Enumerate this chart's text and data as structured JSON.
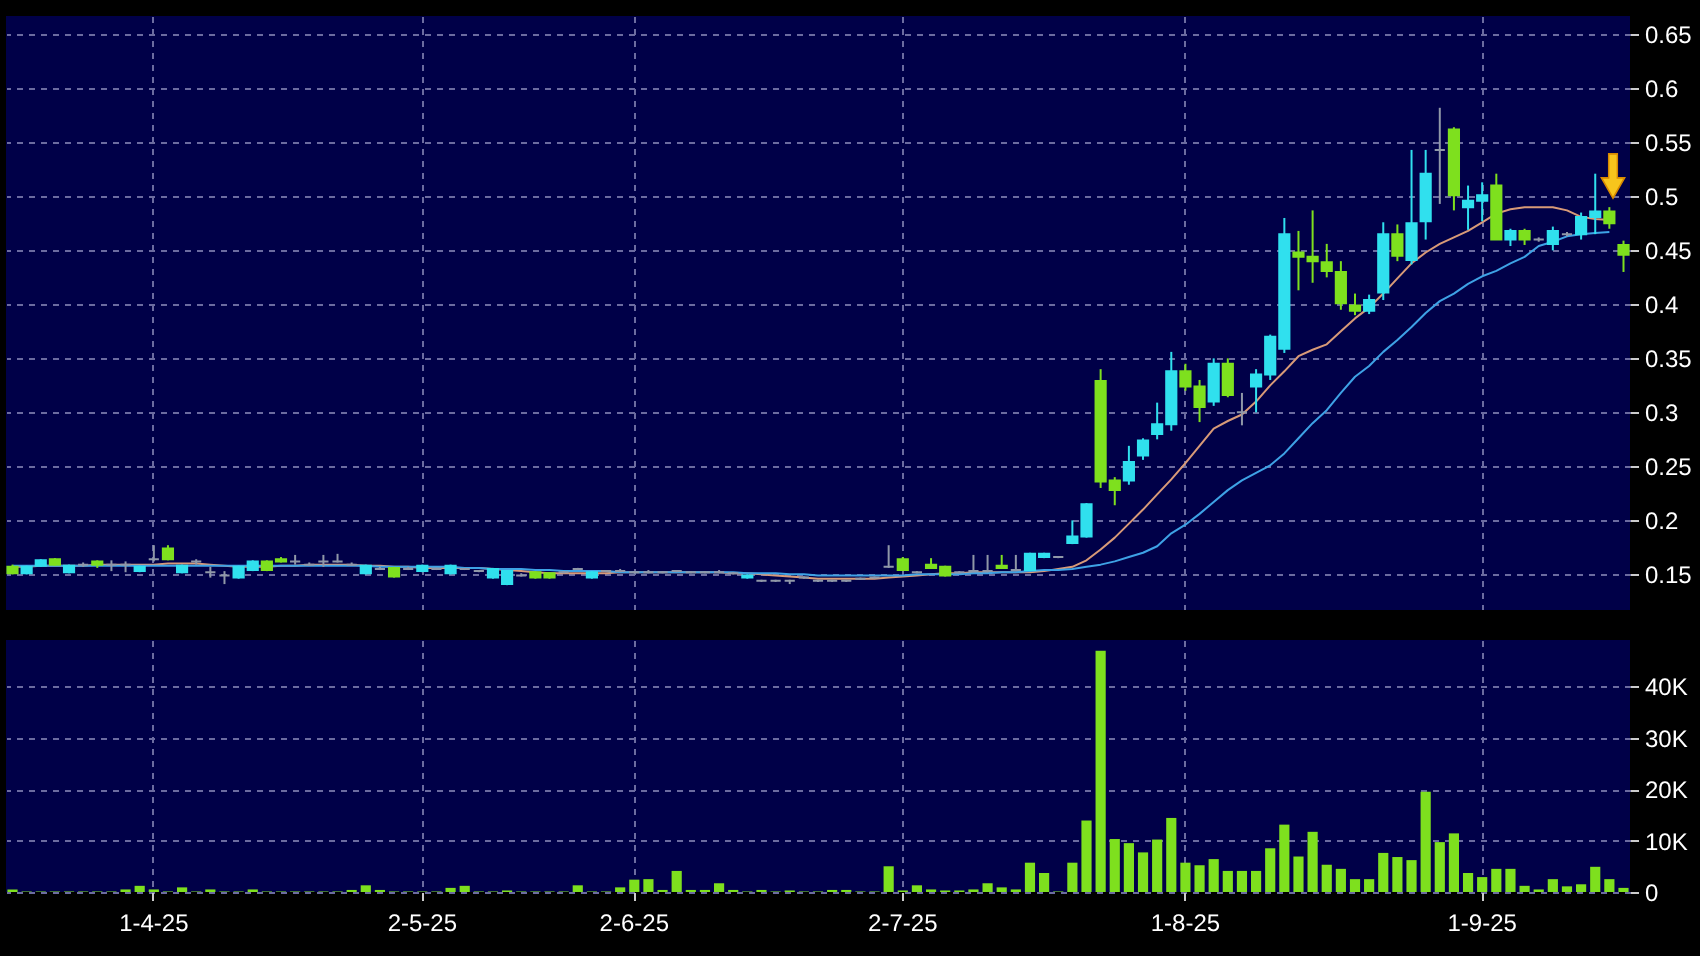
{
  "chart_data": [
    {
      "type": "candlestick",
      "categories": [
        null,
        null,
        null,
        null,
        null,
        null,
        null,
        null,
        null,
        null,
        null,
        null,
        null,
        null,
        null,
        null,
        null,
        null,
        null,
        null,
        null,
        null,
        null,
        null,
        null,
        null,
        null,
        null,
        null,
        null,
        null,
        null,
        null,
        null,
        null,
        null,
        null,
        null,
        null,
        null,
        null,
        null,
        null,
        null,
        null,
        null,
        null,
        null,
        null,
        null,
        null,
        null,
        null,
        null,
        null,
        null,
        null,
        null,
        null,
        null,
        null,
        null,
        null,
        null,
        null,
        null,
        null,
        null,
        null,
        null,
        null,
        null,
        null,
        null,
        null,
        null,
        null,
        null,
        null,
        null,
        null,
        null,
        null,
        null,
        null,
        null,
        null,
        null,
        null,
        null,
        null,
        null,
        null,
        null,
        null,
        null,
        null,
        null,
        null,
        null,
        null,
        null,
        null,
        null,
        null,
        null,
        null,
        null,
        null,
        null,
        null,
        null,
        null,
        null,
        null
      ],
      "ohlc": [
        [
          0.157,
          0.159,
          0.15,
          0.151
        ],
        [
          0.151,
          0.158,
          0.15,
          0.157
        ],
        [
          0.158,
          0.164,
          0.157,
          0.163
        ],
        [
          0.164,
          0.165,
          0.158,
          0.159
        ],
        [
          0.152,
          0.159,
          0.151,
          0.158
        ],
        [
          0.159,
          0.161,
          0.157,
          0.159
        ],
        [
          0.162,
          0.163,
          0.156,
          0.159
        ],
        [
          0.159,
          0.163,
          0.153,
          0.159
        ],
        [
          0.159,
          0.162,
          0.152,
          0.159
        ],
        [
          0.153,
          0.158,
          0.152,
          0.157
        ],
        [
          0.164,
          0.177,
          0.162,
          0.164
        ],
        [
          0.174,
          0.177,
          0.163,
          0.164
        ],
        [
          0.152,
          0.159,
          0.151,
          0.158
        ],
        [
          0.162,
          0.164,
          0.159,
          0.162
        ],
        [
          0.152,
          0.157,
          0.147,
          0.152
        ],
        [
          0.149,
          0.153,
          0.141,
          0.149
        ],
        [
          0.147,
          0.158,
          0.146,
          0.157
        ],
        [
          0.154,
          0.163,
          0.153,
          0.162
        ],
        [
          0.162,
          0.163,
          0.153,
          0.154
        ],
        [
          0.164,
          0.166,
          0.161,
          0.162
        ],
        [
          0.162,
          0.168,
          0.159,
          0.162
        ],
        [
          0.159,
          0.161,
          0.158,
          0.159
        ],
        [
          0.162,
          0.168,
          0.157,
          0.162
        ],
        [
          0.162,
          0.169,
          0.161,
          0.162
        ],
        [
          0.159,
          0.161,
          0.158,
          0.159
        ],
        [
          0.151,
          0.159,
          0.15,
          0.158
        ],
        [
          0.155,
          0.157,
          0.154,
          0.155
        ],
        [
          0.156,
          0.157,
          0.147,
          0.148
        ],
        [
          0.155,
          0.157,
          0.154,
          0.155
        ],
        [
          0.153,
          0.159,
          0.152,
          0.158
        ],
        [
          0.155,
          0.156,
          0.154,
          0.155
        ],
        [
          0.151,
          0.159,
          0.15,
          0.158
        ],
        [
          0.155,
          0.156,
          0.154,
          0.155
        ],
        [
          0.153,
          0.154,
          0.152,
          0.153
        ],
        [
          0.147,
          0.156,
          0.146,
          0.155
        ],
        [
          0.141,
          0.154,
          0.14,
          0.153
        ],
        [
          0.149,
          0.151,
          0.148,
          0.149
        ],
        [
          0.152,
          0.153,
          0.146,
          0.147
        ],
        [
          0.151,
          0.152,
          0.146,
          0.147
        ],
        [
          0.152,
          0.153,
          0.151,
          0.152
        ],
        [
          0.155,
          0.156,
          0.154,
          0.155
        ],
        [
          0.147,
          0.153,
          0.146,
          0.152
        ],
        [
          0.153,
          0.154,
          0.152,
          0.153
        ],
        [
          0.153,
          0.155,
          0.152,
          0.153
        ],
        [
          0.152,
          0.153,
          0.151,
          0.152
        ],
        [
          0.152,
          0.154,
          0.151,
          0.152
        ],
        [
          0.152,
          0.153,
          0.151,
          0.152
        ],
        [
          0.153,
          0.154,
          0.152,
          0.153
        ],
        [
          0.152,
          0.153,
          0.151,
          0.152
        ],
        [
          0.152,
          0.153,
          0.151,
          0.152
        ],
        [
          0.152,
          0.154,
          0.151,
          0.152
        ],
        [
          0.151,
          0.152,
          0.15,
          0.151
        ],
        [
          0.147,
          0.15,
          0.146,
          0.149
        ],
        [
          0.144,
          0.145,
          0.143,
          0.144
        ],
        [
          0.144,
          0.145,
          0.143,
          0.144
        ],
        [
          0.144,
          0.145,
          0.141,
          0.144
        ],
        [
          0.147,
          0.148,
          0.146,
          0.147
        ],
        [
          0.144,
          0.145,
          0.143,
          0.144
        ],
        [
          0.144,
          0.145,
          0.143,
          0.144
        ],
        [
          0.144,
          0.145,
          0.143,
          0.144
        ],
        [
          0.146,
          0.147,
          0.145,
          0.146
        ],
        [
          0.147,
          0.148,
          0.146,
          0.147
        ],
        [
          0.157,
          0.177,
          0.156,
          0.157
        ],
        [
          0.164,
          0.166,
          0.153,
          0.154
        ],
        [
          0.152,
          0.153,
          0.151,
          0.152
        ],
        [
          0.159,
          0.165,
          0.155,
          0.156
        ],
        [
          0.157,
          0.158,
          0.148,
          0.149
        ],
        [
          0.152,
          0.153,
          0.151,
          0.152
        ],
        [
          0.153,
          0.168,
          0.152,
          0.153
        ],
        [
          0.153,
          0.168,
          0.152,
          0.153
        ],
        [
          0.158,
          0.168,
          0.155,
          0.156
        ],
        [
          0.154,
          0.168,
          0.153,
          0.154
        ],
        [
          0.154,
          0.17,
          0.153,
          0.169
        ],
        [
          0.166,
          0.17,
          0.165,
          0.169
        ],
        [
          0.166,
          0.167,
          0.165,
          0.166
        ],
        [
          0.179,
          0.2,
          0.178,
          0.185
        ],
        [
          0.185,
          0.216,
          0.184,
          0.215
        ],
        [
          0.329,
          0.34,
          0.23,
          0.236
        ],
        [
          0.237,
          0.24,
          0.214,
          0.228
        ],
        [
          0.237,
          0.269,
          0.233,
          0.254
        ],
        [
          0.26,
          0.276,
          0.256,
          0.274
        ],
        [
          0.28,
          0.309,
          0.275,
          0.289
        ],
        [
          0.289,
          0.356,
          0.283,
          0.338
        ],
        [
          0.338,
          0.345,
          0.32,
          0.324
        ],
        [
          0.324,
          0.33,
          0.291,
          0.305
        ],
        [
          0.31,
          0.35,
          0.306,
          0.345
        ],
        [
          0.345,
          0.35,
          0.314,
          0.316
        ],
        [
          0.3,
          0.318,
          0.288,
          0.3
        ],
        [
          0.324,
          0.34,
          0.3,
          0.335
        ],
        [
          0.335,
          0.372,
          0.33,
          0.37
        ],
        [
          0.359,
          0.48,
          0.355,
          0.465
        ],
        [
          0.448,
          0.468,
          0.413,
          0.444
        ],
        [
          0.444,
          0.487,
          0.42,
          0.44
        ],
        [
          0.439,
          0.456,
          0.425,
          0.431
        ],
        [
          0.43,
          0.44,
          0.395,
          0.401
        ],
        [
          0.399,
          0.41,
          0.39,
          0.394
        ],
        [
          0.394,
          0.409,
          0.391,
          0.404
        ],
        [
          0.411,
          0.476,
          0.404,
          0.465
        ],
        [
          0.465,
          0.474,
          0.44,
          0.445
        ],
        [
          0.441,
          0.543,
          0.437,
          0.475
        ],
        [
          0.477,
          0.543,
          0.46,
          0.521
        ],
        [
          0.543,
          0.582,
          0.493,
          0.543
        ],
        [
          0.562,
          0.564,
          0.487,
          0.501
        ],
        [
          0.49,
          0.51,
          0.469,
          0.496
        ],
        [
          0.496,
          0.513,
          0.477,
          0.501
        ],
        [
          0.51,
          0.521,
          0.46,
          0.46
        ],
        [
          0.46,
          0.47,
          0.454,
          0.468
        ],
        [
          0.468,
          0.47,
          0.455,
          0.46
        ],
        [
          0.46,
          0.462,
          0.458,
          0.46
        ],
        [
          0.456,
          0.472,
          0.45,
          0.468
        ],
        [
          0.465,
          0.467,
          0.463,
          0.465
        ],
        [
          0.465,
          0.485,
          0.46,
          0.481
        ],
        [
          0.481,
          0.521,
          0.465,
          0.486
        ],
        [
          0.486,
          0.49,
          0.47,
          0.475
        ],
        [
          0.455,
          0.459,
          0.43,
          0.446
        ]
      ],
      "colors": [
        "#7ee01e",
        "#30e0ee",
        "#30e0ee",
        "#7ee01e",
        "#30e0ee",
        "#9098a8",
        "#7ee01e",
        "#9098a8",
        "#9098a8",
        "#30e0ee",
        "#9098a8",
        "#7ee01e",
        "#30e0ee",
        "#9098a8",
        "#9098a8",
        "#9098a8",
        "#30e0ee",
        "#30e0ee",
        "#7ee01e",
        "#7ee01e",
        "#9098a8",
        "#9098a8",
        "#9098a8",
        "#9098a8",
        "#9098a8",
        "#30e0ee",
        "#9098a8",
        "#7ee01e",
        "#9098a8",
        "#30e0ee",
        "#9098a8",
        "#30e0ee",
        "#9098a8",
        "#9098a8",
        "#30e0ee",
        "#30e0ee",
        "#9098a8",
        "#7ee01e",
        "#7ee01e",
        "#9098a8",
        "#9098a8",
        "#30e0ee",
        "#9098a8",
        "#9098a8",
        "#9098a8",
        "#9098a8",
        "#9098a8",
        "#9098a8",
        "#9098a8",
        "#9098a8",
        "#9098a8",
        "#9098a8",
        "#30e0ee",
        "#9098a8",
        "#9098a8",
        "#9098a8",
        "#9098a8",
        "#9098a8",
        "#9098a8",
        "#9098a8",
        "#9098a8",
        "#9098a8",
        "#9098a8",
        "#7ee01e",
        "#9098a8",
        "#7ee01e",
        "#7ee01e",
        "#9098a8",
        "#9098a8",
        "#9098a8",
        "#7ee01e",
        "#9098a8",
        "#30e0ee",
        "#30e0ee",
        "#9098a8",
        "#30e0ee",
        "#30e0ee",
        "#7ee01e",
        "#7ee01e",
        "#30e0ee",
        "#30e0ee",
        "#30e0ee",
        "#30e0ee",
        "#7ee01e",
        "#7ee01e",
        "#30e0ee",
        "#7ee01e",
        "#9098a8",
        "#30e0ee",
        "#30e0ee",
        "#30e0ee",
        "#7ee01e",
        "#7ee01e",
        "#7ee01e",
        "#7ee01e",
        "#7ee01e",
        "#30e0ee",
        "#30e0ee",
        "#7ee01e",
        "#30e0ee",
        "#30e0ee",
        "#9098a8",
        "#7ee01e",
        "#30e0ee",
        "#30e0ee",
        "#7ee01e",
        "#30e0ee",
        "#7ee01e",
        "#9098a8",
        "#30e0ee",
        "#9098a8",
        "#30e0ee",
        "#30e0ee",
        "#7ee01e",
        "#7ee01e"
      ],
      "series": [
        {
          "type": "line",
          "color": "#d89a78",
          "values": [
            0.157,
            0.157,
            0.158,
            0.158,
            0.158,
            0.158,
            0.159,
            0.159,
            0.159,
            0.159,
            0.159,
            0.16,
            0.16,
            0.16,
            0.159,
            0.158,
            0.157,
            0.157,
            0.157,
            0.158,
            0.158,
            0.159,
            0.159,
            0.159,
            0.159,
            0.158,
            0.158,
            0.157,
            0.157,
            0.156,
            0.156,
            0.156,
            0.156,
            0.156,
            0.155,
            0.154,
            0.153,
            0.152,
            0.151,
            0.151,
            0.151,
            0.151,
            0.151,
            0.152,
            0.152,
            0.152,
            0.152,
            0.152,
            0.152,
            0.152,
            0.152,
            0.151,
            0.151,
            0.15,
            0.149,
            0.148,
            0.147,
            0.146,
            0.146,
            0.146,
            0.146,
            0.146,
            0.147,
            0.148,
            0.149,
            0.15,
            0.151,
            0.151,
            0.152,
            0.152,
            0.152,
            0.152,
            0.152,
            0.153,
            0.155,
            0.157,
            0.163,
            0.173,
            0.184,
            0.197,
            0.21,
            0.224,
            0.238,
            0.253,
            0.269,
            0.285,
            0.292,
            0.298,
            0.31,
            0.325,
            0.338,
            0.352,
            0.358,
            0.363,
            0.375,
            0.387,
            0.397,
            0.41,
            0.424,
            0.438,
            0.448,
            0.456,
            0.462,
            0.468,
            0.476,
            0.484,
            0.488,
            0.49,
            0.49,
            0.49,
            0.487,
            0.481,
            0.479,
            0.478,
            null
          ]
        },
        {
          "type": "line",
          "color": "#3ea2e6",
          "values": [
            0.158,
            0.158,
            0.158,
            0.158,
            0.158,
            0.158,
            0.158,
            0.158,
            0.158,
            0.158,
            0.158,
            0.158,
            0.158,
            0.158,
            0.158,
            0.158,
            0.158,
            0.158,
            0.158,
            0.158,
            0.158,
            0.158,
            0.158,
            0.158,
            0.158,
            0.158,
            0.157,
            0.157,
            0.157,
            0.157,
            0.157,
            0.157,
            0.156,
            0.156,
            0.155,
            0.155,
            0.155,
            0.154,
            0.154,
            0.153,
            0.153,
            0.153,
            0.153,
            0.152,
            0.152,
            0.152,
            0.152,
            0.152,
            0.152,
            0.152,
            0.152,
            0.152,
            0.151,
            0.151,
            0.151,
            0.15,
            0.15,
            0.149,
            0.149,
            0.149,
            0.149,
            0.149,
            0.149,
            0.149,
            0.15,
            0.15,
            0.15,
            0.15,
            0.151,
            0.151,
            0.152,
            0.152,
            0.153,
            0.154,
            0.154,
            0.155,
            0.157,
            0.159,
            0.162,
            0.166,
            0.17,
            0.176,
            0.188,
            0.196,
            0.206,
            0.217,
            0.228,
            0.237,
            0.244,
            0.251,
            0.262,
            0.276,
            0.29,
            0.302,
            0.318,
            0.333,
            0.343,
            0.356,
            0.367,
            0.379,
            0.392,
            0.403,
            0.41,
            0.419,
            0.426,
            0.431,
            0.438,
            0.444,
            0.454,
            0.458,
            0.463,
            0.465,
            0.466,
            0.467,
            null
          ]
        }
      ],
      "ylim": [
        0.117,
        0.667
      ],
      "yticks": [
        0.15,
        0.2,
        0.25,
        0.3,
        0.35,
        0.4,
        0.45,
        0.5,
        0.55,
        0.6,
        0.65
      ],
      "grid": true,
      "tick_labels": "y"
    },
    {
      "type": "bar",
      "categories": [
        null,
        null,
        null,
        null,
        null,
        null,
        null,
        null,
        null,
        null,
        "1-4-25",
        null,
        null,
        null,
        null,
        null,
        null,
        null,
        null,
        null,
        null,
        null,
        null,
        null,
        null,
        null,
        null,
        null,
        null,
        "2-5-25",
        null,
        null,
        null,
        null,
        null,
        null,
        null,
        null,
        null,
        null,
        null,
        null,
        null,
        null,
        "2-6-25",
        null,
        null,
        null,
        null,
        null,
        null,
        null,
        null,
        null,
        null,
        null,
        null,
        null,
        null,
        null,
        null,
        null,
        null,
        "2-7-25",
        null,
        null,
        null,
        null,
        null,
        null,
        null,
        null,
        null,
        null,
        null,
        null,
        null,
        null,
        null,
        null,
        null,
        null,
        null,
        "1-8-25",
        null,
        null,
        null,
        null,
        null,
        null,
        null,
        null,
        null,
        null,
        null,
        null,
        null,
        null,
        null,
        null,
        null,
        null,
        null,
        null,
        "1-9-25",
        null,
        null,
        null,
        null,
        null,
        null,
        null,
        null,
        null,
        null
      ],
      "values": [
        500,
        100,
        100,
        100,
        100,
        100,
        100,
        100,
        500,
        1200,
        500,
        100,
        900,
        100,
        500,
        100,
        100,
        500,
        100,
        100,
        100,
        100,
        100,
        100,
        400,
        1300,
        400,
        100,
        100,
        100,
        100,
        800,
        1200,
        100,
        100,
        300,
        100,
        100,
        100,
        100,
        1300,
        100,
        100,
        900,
        2400,
        2500,
        400,
        4100,
        400,
        400,
        1700,
        400,
        100,
        400,
        100,
        300,
        100,
        100,
        400,
        400,
        100,
        100,
        5000,
        300,
        1300,
        500,
        300,
        300,
        500,
        1700,
        900,
        500,
        5700,
        3700,
        100,
        5700,
        13900,
        46900,
        10300,
        9500,
        7700,
        10200,
        14400,
        5700,
        5200,
        6400,
        4100,
        4100,
        4100,
        8500,
        13100,
        6900,
        11700,
        5300,
        4500,
        2500,
        2500,
        7600,
        6800,
        6200,
        19500,
        9700,
        11400,
        3700,
        2900,
        4500,
        4500,
        1200,
        500,
        2500,
        1100,
        1500,
        4900,
        2500,
        800
      ],
      "color": "#7ee01e",
      "ylim": [
        0,
        49000
      ],
      "yticks": [
        0,
        {
          "value": 10000,
          "label": "10K"
        },
        {
          "value": 20000,
          "label": "20K"
        },
        {
          "value": 30000,
          "label": "30K"
        },
        {
          "value": 40000,
          "label": "40K"
        }
      ],
      "grid": true
    }
  ]
}
